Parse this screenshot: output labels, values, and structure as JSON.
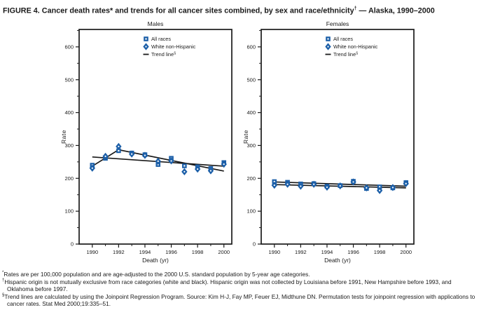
{
  "title": {
    "prefix": "FIGURE 4. Cancer death rates* and trends for all cancer sites combined, by sex and race/ethnicity",
    "sup": "†",
    "suffix": " — Alaska, 1990–2000"
  },
  "colors": {
    "marker_blue": "#1c5fa8",
    "line_black": "#1a1a1a",
    "frame_black": "#1a1a1a",
    "background": "#ffffff"
  },
  "chart_data": [
    {
      "type": "scatter",
      "title": "Males",
      "xlabel": "Death (yr)",
      "ylabel": "Rate",
      "x": [
        1990,
        1991,
        1992,
        1993,
        1994,
        1995,
        1996,
        1997,
        1998,
        1999,
        2000
      ],
      "xticks": [
        1990,
        1992,
        1994,
        1996,
        1998,
        2000
      ],
      "yticks": [
        0,
        100,
        200,
        300,
        400,
        500,
        600
      ],
      "xlim": [
        1989.0,
        2000.6
      ],
      "ylim": [
        0,
        653
      ],
      "grid": false,
      "legend_position": "top-right-inside",
      "series": [
        {
          "name": "All races",
          "marker": "square",
          "values": [
            240,
            261,
            284,
            277,
            272,
            242,
            261,
            238,
            235,
            230,
            248
          ]
        },
        {
          "name": "White non-Hispanic",
          "marker": "diamond",
          "values": [
            231,
            267,
            297,
            274,
            270,
            252,
            253,
            220,
            228,
            223,
            243
          ]
        }
      ],
      "trend_label": "Trend line",
      "trend_sup": "§",
      "trend_lines": [
        {
          "name": "trend-straight",
          "points": [
            [
              1990,
              265
            ],
            [
              2000,
              237
            ]
          ]
        },
        {
          "name": "trend-joinpoint",
          "points": [
            [
              1990,
              237
            ],
            [
              1992,
              287
            ],
            [
              2000,
              222
            ]
          ]
        }
      ]
    },
    {
      "type": "scatter",
      "title": "Females",
      "xlabel": "Death (yr)",
      "ylabel": "Rate",
      "x": [
        1990,
        1991,
        1992,
        1993,
        1994,
        1995,
        1996,
        1997,
        1998,
        1999,
        2000
      ],
      "xticks": [
        1990,
        1992,
        1994,
        1996,
        1998,
        2000
      ],
      "yticks": [
        0,
        100,
        200,
        300,
        400,
        500,
        600
      ],
      "xlim": [
        1989.0,
        2000.6
      ],
      "ylim": [
        0,
        653
      ],
      "grid": false,
      "legend_position": "top-right-inside",
      "series": [
        {
          "name": "All races",
          "marker": "square",
          "values": [
            190,
            188,
            183,
            184,
            176,
            178,
            191,
            169,
            174,
            171,
            187
          ]
        },
        {
          "name": "White non-Hispanic",
          "marker": "diamond",
          "values": [
            179,
            182,
            176,
            182,
            173,
            177,
            189,
            171,
            163,
            172,
            184
          ]
        }
      ],
      "trend_label": "Trend line",
      "trend_sup": "§",
      "trend_lines": [
        {
          "name": "trend-all-races",
          "points": [
            [
              1990,
              189
            ],
            [
              2000,
              176
            ]
          ]
        },
        {
          "name": "trend-white-nh",
          "points": [
            [
              1990,
              181
            ],
            [
              2000,
              171
            ]
          ]
        }
      ]
    }
  ],
  "footnotes": [
    {
      "sup": "*",
      "text": "Rates are per 100,000 population and are age-adjusted to the 2000 U.S. standard population by 5-year age categories."
    },
    {
      "sup": "†",
      "text": "Hispanic origin is not mutually exclusive from race categories (white and black). Hispanic origin was not collected by Louisiana before 1991, New Hampshire before 1993, and Oklahoma before 1997."
    },
    {
      "sup": "§",
      "text": "Trend lines are calculated by using the Joinpoint Regression Program. Source: Kim H-J, Fay MP, Feuer EJ, Midthune DN. Permutation tests for joinpoint regression with applications to cancer rates. Stat Med 2000;19:335–51."
    }
  ]
}
